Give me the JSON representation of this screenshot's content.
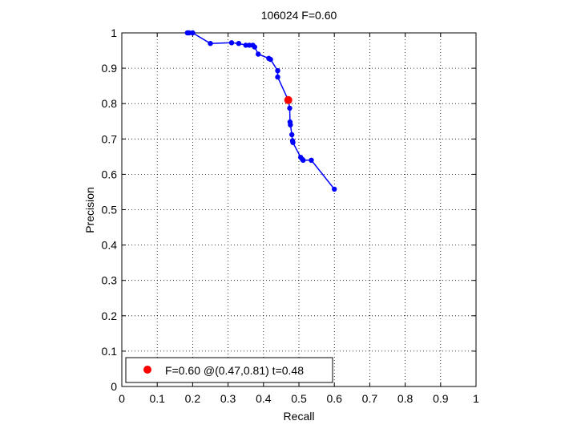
{
  "chart_data": {
    "type": "line",
    "title": "106024 F=0.60",
    "xlabel": "Recall",
    "ylabel": "Precision",
    "xlim": [
      0,
      1
    ],
    "ylim": [
      0,
      1
    ],
    "grid": true,
    "xticks": [
      "0",
      "0.1",
      "0.2",
      "0.3",
      "0.4",
      "0.5",
      "0.6",
      "0.7",
      "0.8",
      "0.9",
      "1"
    ],
    "yticks": [
      "0",
      "0.1",
      "0.2",
      "0.3",
      "0.4",
      "0.5",
      "0.6",
      "0.7",
      "0.8",
      "0.9",
      "1"
    ],
    "series": [
      {
        "color": "#0000ff",
        "points": [
          [
            0.185,
            1.0
          ],
          [
            0.19,
            1.0
          ],
          [
            0.2,
            1.0
          ],
          [
            0.25,
            0.97
          ],
          [
            0.31,
            0.972
          ],
          [
            0.33,
            0.97
          ],
          [
            0.35,
            0.965
          ],
          [
            0.36,
            0.965
          ],
          [
            0.37,
            0.965
          ],
          [
            0.375,
            0.96
          ],
          [
            0.385,
            0.94
          ],
          [
            0.415,
            0.928
          ],
          [
            0.42,
            0.925
          ],
          [
            0.44,
            0.893
          ],
          [
            0.44,
            0.875
          ],
          [
            0.47,
            0.81
          ],
          [
            0.474,
            0.787
          ],
          [
            0.475,
            0.748
          ],
          [
            0.476,
            0.74
          ],
          [
            0.48,
            0.712
          ],
          [
            0.482,
            0.695
          ],
          [
            0.483,
            0.69
          ],
          [
            0.505,
            0.648
          ],
          [
            0.51,
            0.642
          ],
          [
            0.512,
            0.64
          ],
          [
            0.535,
            0.64
          ],
          [
            0.6,
            0.558
          ]
        ]
      }
    ],
    "highlight": {
      "x": 0.47,
      "y": 0.81,
      "color": "#ff0000"
    },
    "legend": {
      "position": "bottom-left",
      "label": "F=0.60 @(0.47,0.81) t=0.48"
    }
  }
}
